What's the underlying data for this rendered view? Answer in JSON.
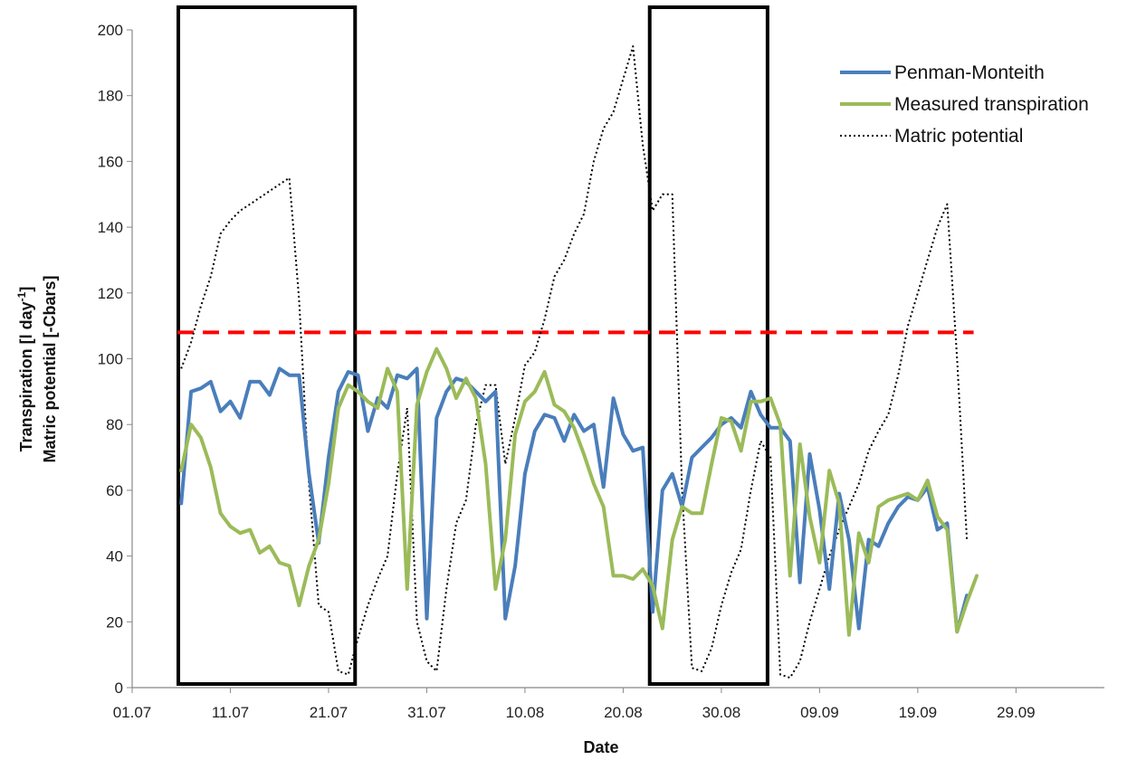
{
  "chart_data": {
    "type": "line",
    "xlabel": "Date",
    "ylabel_line1": "Transpiration [l day",
    "ylabel_sup": "-1",
    "ylabel_line1_end": "]",
    "ylabel_line2": "Matric potential [-Cbars]",
    "ylim": [
      0,
      200
    ],
    "yticks": [
      "0",
      "20",
      "40",
      "60",
      "80",
      "100",
      "120",
      "140",
      "160",
      "180",
      "200"
    ],
    "x_range": [
      "2013-07-01",
      "2013-10-08"
    ],
    "xticks": [
      "01.07",
      "11.07",
      "21.07",
      "31.07",
      "10.08",
      "20.08",
      "30.08",
      "09.09",
      "19.09",
      "29.09"
    ],
    "grid": false,
    "legend_position": "top-right",
    "threshold_line": {
      "y": 108,
      "x_from": "2013-07-01",
      "x_to": "2013-09-21",
      "color": "#ff0000"
    },
    "highlight_boxes": [
      {
        "from": "2013-07-01",
        "to": "2013-07-19"
      },
      {
        "from": "2013-08-18",
        "to": "2013-08-30"
      }
    ],
    "series": [
      {
        "name": "Penman-Monteith",
        "color": "#4a7ebb",
        "style": "solid",
        "points": [
          [
            "2013-07-06",
            56
          ],
          [
            "2013-07-07",
            90
          ],
          [
            "2013-07-08",
            91
          ],
          [
            "2013-07-09",
            93
          ],
          [
            "2013-07-10",
            84
          ],
          [
            "2013-07-11",
            87
          ],
          [
            "2013-07-12",
            82
          ],
          [
            "2013-07-13",
            93
          ],
          [
            "2013-07-14",
            93
          ],
          [
            "2013-07-15",
            89
          ],
          [
            "2013-07-16",
            97
          ],
          [
            "2013-07-17",
            95
          ],
          [
            "2013-07-18",
            95
          ],
          [
            "2013-07-19",
            65
          ],
          [
            "2013-07-20",
            44
          ],
          [
            "2013-07-21",
            70
          ],
          [
            "2013-07-22",
            90
          ],
          [
            "2013-07-23",
            96
          ],
          [
            "2013-07-24",
            95
          ],
          [
            "2013-07-25",
            78
          ],
          [
            "2013-07-26",
            88
          ],
          [
            "2013-07-27",
            85
          ],
          [
            "2013-07-28",
            95
          ],
          [
            "2013-07-29",
            94
          ],
          [
            "2013-07-30",
            97
          ],
          [
            "2013-07-31",
            21
          ],
          [
            "2013-08-01",
            82
          ],
          [
            "2013-08-02",
            90
          ],
          [
            "2013-08-03",
            94
          ],
          [
            "2013-08-04",
            93
          ],
          [
            "2013-08-05",
            90
          ],
          [
            "2013-08-06",
            87
          ],
          [
            "2013-08-07",
            90
          ],
          [
            "2013-08-08",
            21
          ],
          [
            "2013-08-09",
            37
          ],
          [
            "2013-08-10",
            65
          ],
          [
            "2013-08-11",
            78
          ],
          [
            "2013-08-12",
            83
          ],
          [
            "2013-08-13",
            82
          ],
          [
            "2013-08-14",
            75
          ],
          [
            "2013-08-15",
            83
          ],
          [
            "2013-08-16",
            78
          ],
          [
            "2013-08-17",
            80
          ],
          [
            "2013-08-18",
            61
          ],
          [
            "2013-08-19",
            88
          ],
          [
            "2013-08-20",
            77
          ],
          [
            "2013-08-21",
            72
          ],
          [
            "2013-08-22",
            73
          ],
          [
            "2013-08-23",
            23
          ],
          [
            "2013-08-24",
            60
          ],
          [
            "2013-08-25",
            65
          ],
          [
            "2013-08-26",
            55
          ],
          [
            "2013-08-27",
            70
          ],
          [
            "2013-08-28",
            73
          ],
          [
            "2013-08-29",
            76
          ],
          [
            "2013-08-30",
            80
          ],
          [
            "2013-08-31",
            82
          ],
          [
            "2013-09-01",
            79
          ],
          [
            "2013-09-02",
            90
          ],
          [
            "2013-09-03",
            83
          ],
          [
            "2013-09-04",
            79
          ],
          [
            "2013-09-05",
            79
          ],
          [
            "2013-09-06",
            75
          ],
          [
            "2013-09-07",
            32
          ],
          [
            "2013-09-08",
            71
          ],
          [
            "2013-09-09",
            54
          ],
          [
            "2013-09-10",
            30
          ],
          [
            "2013-09-11",
            59
          ],
          [
            "2013-09-12",
            45
          ],
          [
            "2013-09-13",
            18
          ],
          [
            "2013-09-14",
            45
          ],
          [
            "2013-09-15",
            43
          ],
          [
            "2013-09-16",
            50
          ],
          [
            "2013-09-17",
            55
          ],
          [
            "2013-09-18",
            58
          ],
          [
            "2013-09-19",
            57
          ],
          [
            "2013-09-20",
            61
          ],
          [
            "2013-09-21",
            48
          ],
          [
            "2013-09-22",
            50
          ],
          [
            "2013-09-23",
            17
          ],
          [
            "2013-09-24",
            28
          ]
        ]
      },
      {
        "name": "Measured transpiration",
        "color": "#9bbb59",
        "style": "solid",
        "points": [
          [
            "2013-07-06",
            66
          ],
          [
            "2013-07-07",
            80
          ],
          [
            "2013-07-08",
            76
          ],
          [
            "2013-07-09",
            67
          ],
          [
            "2013-07-10",
            53
          ],
          [
            "2013-07-11",
            49
          ],
          [
            "2013-07-12",
            47
          ],
          [
            "2013-07-13",
            48
          ],
          [
            "2013-07-14",
            41
          ],
          [
            "2013-07-15",
            43
          ],
          [
            "2013-07-16",
            38
          ],
          [
            "2013-07-17",
            37
          ],
          [
            "2013-07-18",
            25
          ],
          [
            "2013-07-19",
            37
          ],
          [
            "2013-07-20",
            45
          ],
          [
            "2013-07-21",
            62
          ],
          [
            "2013-07-22",
            85
          ],
          [
            "2013-07-23",
            92
          ],
          [
            "2013-07-24",
            90
          ],
          [
            "2013-07-25",
            87
          ],
          [
            "2013-07-26",
            85
          ],
          [
            "2013-07-27",
            97
          ],
          [
            "2013-07-28",
            90
          ],
          [
            "2013-07-29",
            30
          ],
          [
            "2013-07-30",
            86
          ],
          [
            "2013-07-31",
            96
          ],
          [
            "2013-08-01",
            103
          ],
          [
            "2013-08-02",
            97
          ],
          [
            "2013-08-03",
            88
          ],
          [
            "2013-08-04",
            94
          ],
          [
            "2013-08-05",
            88
          ],
          [
            "2013-08-06",
            68
          ],
          [
            "2013-08-07",
            30
          ],
          [
            "2013-08-08",
            45
          ],
          [
            "2013-08-09",
            77
          ],
          [
            "2013-08-10",
            87
          ],
          [
            "2013-08-11",
            90
          ],
          [
            "2013-08-12",
            96
          ],
          [
            "2013-08-13",
            86
          ],
          [
            "2013-08-14",
            84
          ],
          [
            "2013-08-15",
            79
          ],
          [
            "2013-08-16",
            71
          ],
          [
            "2013-08-17",
            62
          ],
          [
            "2013-08-18",
            55
          ],
          [
            "2013-08-19",
            34
          ],
          [
            "2013-08-20",
            34
          ],
          [
            "2013-08-21",
            33
          ],
          [
            "2013-08-22",
            36
          ],
          [
            "2013-08-23",
            31
          ],
          [
            "2013-08-24",
            18
          ],
          [
            "2013-08-25",
            45
          ],
          [
            "2013-08-26",
            55
          ],
          [
            "2013-08-27",
            53
          ],
          [
            "2013-08-28",
            53
          ],
          [
            "2013-08-29",
            68
          ],
          [
            "2013-08-30",
            82
          ],
          [
            "2013-08-31",
            81
          ],
          [
            "2013-09-01",
            72
          ],
          [
            "2013-09-02",
            87
          ],
          [
            "2013-09-03",
            87
          ],
          [
            "2013-09-04",
            88
          ],
          [
            "2013-09-05",
            80
          ],
          [
            "2013-09-06",
            34
          ],
          [
            "2013-09-07",
            74
          ],
          [
            "2013-09-08",
            52
          ],
          [
            "2013-09-09",
            38
          ],
          [
            "2013-09-10",
            66
          ],
          [
            "2013-09-11",
            56
          ],
          [
            "2013-09-12",
            16
          ],
          [
            "2013-09-13",
            47
          ],
          [
            "2013-09-14",
            38
          ],
          [
            "2013-09-15",
            55
          ],
          [
            "2013-09-16",
            57
          ],
          [
            "2013-09-17",
            58
          ],
          [
            "2013-09-18",
            59
          ],
          [
            "2013-09-19",
            57
          ],
          [
            "2013-09-20",
            63
          ],
          [
            "2013-09-21",
            52
          ],
          [
            "2013-09-22",
            48
          ],
          [
            "2013-09-23",
            17
          ],
          [
            "2013-09-24",
            26
          ],
          [
            "2013-09-25",
            34
          ]
        ]
      },
      {
        "name": "Matric potential",
        "color": "#000000",
        "style": "dotted",
        "points": [
          [
            "2013-07-06",
            97
          ],
          [
            "2013-07-07",
            105
          ],
          [
            "2013-07-08",
            116
          ],
          [
            "2013-07-09",
            125
          ],
          [
            "2013-07-10",
            138
          ],
          [
            "2013-07-11",
            142
          ],
          [
            "2013-07-12",
            145
          ],
          [
            "2013-07-13",
            147
          ],
          [
            "2013-07-14",
            149
          ],
          [
            "2013-07-15",
            151
          ],
          [
            "2013-07-16",
            153
          ],
          [
            "2013-07-17",
            155
          ],
          [
            "2013-07-18",
            118
          ],
          [
            "2013-07-19",
            62
          ],
          [
            "2013-07-20",
            25
          ],
          [
            "2013-07-21",
            23
          ],
          [
            "2013-07-22",
            5
          ],
          [
            "2013-07-23",
            4
          ],
          [
            "2013-07-24",
            15
          ],
          [
            "2013-07-25",
            25
          ],
          [
            "2013-07-26",
            33
          ],
          [
            "2013-07-27",
            40
          ],
          [
            "2013-07-28",
            65
          ],
          [
            "2013-07-29",
            85
          ],
          [
            "2013-07-30",
            20
          ],
          [
            "2013-07-31",
            8
          ],
          [
            "2013-08-01",
            5
          ],
          [
            "2013-08-02",
            30
          ],
          [
            "2013-08-03",
            50
          ],
          [
            "2013-08-04",
            57
          ],
          [
            "2013-08-05",
            80
          ],
          [
            "2013-08-06",
            92
          ],
          [
            "2013-08-07",
            92
          ],
          [
            "2013-08-08",
            68
          ],
          [
            "2013-08-09",
            82
          ],
          [
            "2013-08-10",
            98
          ],
          [
            "2013-08-11",
            102
          ],
          [
            "2013-08-12",
            112
          ],
          [
            "2013-08-13",
            125
          ],
          [
            "2013-08-14",
            130
          ],
          [
            "2013-08-15",
            138
          ],
          [
            "2013-08-16",
            144
          ],
          [
            "2013-08-17",
            160
          ],
          [
            "2013-08-18",
            170
          ],
          [
            "2013-08-19",
            175
          ],
          [
            "2013-08-20",
            185
          ],
          [
            "2013-08-21",
            195
          ],
          [
            "2013-08-22",
            165
          ],
          [
            "2013-08-23",
            145
          ],
          [
            "2013-08-24",
            150
          ],
          [
            "2013-08-25",
            150
          ],
          [
            "2013-08-26",
            60
          ],
          [
            "2013-08-27",
            6
          ],
          [
            "2013-08-28",
            5
          ],
          [
            "2013-08-29",
            12
          ],
          [
            "2013-08-30",
            25
          ],
          [
            "2013-08-31",
            35
          ],
          [
            "2013-09-01",
            42
          ],
          [
            "2013-09-02",
            60
          ],
          [
            "2013-09-03",
            75
          ],
          [
            "2013-09-04",
            70
          ],
          [
            "2013-09-05",
            4
          ],
          [
            "2013-09-06",
            3
          ],
          [
            "2013-09-07",
            8
          ],
          [
            "2013-09-08",
            20
          ],
          [
            "2013-09-09",
            30
          ],
          [
            "2013-09-10",
            40
          ],
          [
            "2013-09-11",
            48
          ],
          [
            "2013-09-12",
            55
          ],
          [
            "2013-09-13",
            62
          ],
          [
            "2013-09-14",
            72
          ],
          [
            "2013-09-15",
            78
          ],
          [
            "2013-09-16",
            83
          ],
          [
            "2013-09-17",
            95
          ],
          [
            "2013-09-18",
            110
          ],
          [
            "2013-09-19",
            120
          ],
          [
            "2013-09-20",
            130
          ],
          [
            "2013-09-21",
            140
          ],
          [
            "2013-09-22",
            147
          ],
          [
            "2013-09-23",
            100
          ],
          [
            "2013-09-24",
            45
          ]
        ]
      }
    ]
  }
}
